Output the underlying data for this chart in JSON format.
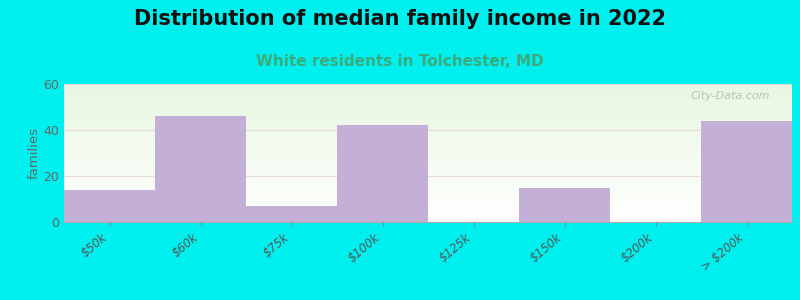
{
  "title": "Distribution of median family income in 2022",
  "subtitle": "White residents in Tolchester, MD",
  "categories": [
    "$50k",
    "$60k",
    "$75k",
    "$100k",
    "$125k",
    "$150k",
    "$200k",
    "> $200k"
  ],
  "values": [
    14,
    46,
    7,
    42,
    0,
    15,
    0,
    44
  ],
  "bar_color": "#c4afd6",
  "background_outer": "#00f0f0",
  "ylabel": "families",
  "ylim": [
    0,
    60
  ],
  "yticks": [
    0,
    20,
    40,
    60
  ],
  "watermark": "City-Data.com",
  "title_fontsize": 15,
  "subtitle_fontsize": 11,
  "subtitle_color": "#3aab7a",
  "title_color": "#111111"
}
